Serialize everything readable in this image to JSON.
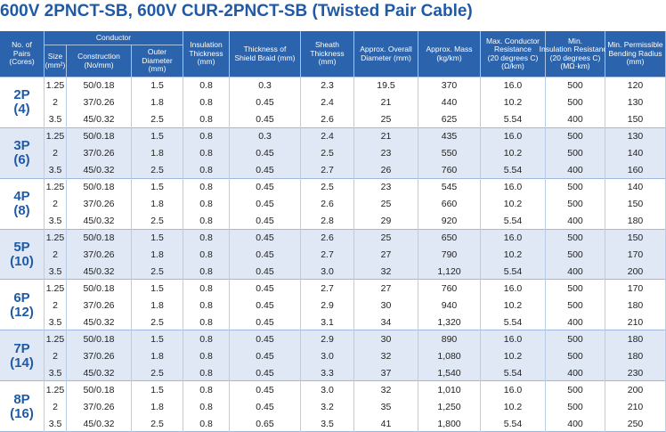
{
  "header": {
    "title": "600V 2PNCT-SB, 600V CUR-2PNCT-SB (Twisted Pair Cable)"
  },
  "table": {
    "group_header": [
      "No. of",
      "Pairs",
      "(Cores)"
    ],
    "conductor_header": "Conductor",
    "columns": [
      [
        "Size",
        "(mm²)"
      ],
      [
        "Construction",
        "(No/mm)"
      ],
      [
        "Outer",
        "Diameter",
        "(mm)"
      ],
      [
        "Insulation",
        "Thickness",
        "(mm)"
      ],
      [
        "Thickness of",
        "Shield Braid (mm)"
      ],
      [
        "Sheath",
        "Thickness",
        "(mm)"
      ],
      [
        "Approx. Overall",
        "Diameter (mm)"
      ],
      [
        "Approx. Mass",
        "(kg/km)"
      ],
      [
        "Max. Conductor",
        "Resistance",
        "(20 degrees C)",
        "(Ω/km)"
      ],
      [
        "Min.",
        "Insulation Resistance",
        "(20 degrees C)",
        "(MΩ·km)"
      ],
      [
        "Min. Permissible",
        "Bending Radius",
        "(mm)"
      ]
    ],
    "groups": [
      {
        "pairs": "2P",
        "cores": "(4)",
        "rows": [
          [
            "1.25",
            "50/0.18",
            "1.5",
            "0.8",
            "0.3",
            "2.3",
            "19.5",
            "370",
            "16.0",
            "500",
            "120"
          ],
          [
            "2",
            "37/0.26",
            "1.8",
            "0.8",
            "0.45",
            "2.4",
            "21",
            "440",
            "10.2",
            "500",
            "130"
          ],
          [
            "3.5",
            "45/0.32",
            "2.5",
            "0.8",
            "0.45",
            "2.6",
            "25",
            "625",
            "5.54",
            "400",
            "150"
          ]
        ]
      },
      {
        "pairs": "3P",
        "cores": "(6)",
        "rows": [
          [
            "1.25",
            "50/0.18",
            "1.5",
            "0.8",
            "0.3",
            "2.4",
            "21",
            "435",
            "16.0",
            "500",
            "130"
          ],
          [
            "2",
            "37/0.26",
            "1.8",
            "0.8",
            "0.45",
            "2.5",
            "23",
            "550",
            "10.2",
            "500",
            "140"
          ],
          [
            "3.5",
            "45/0.32",
            "2.5",
            "0.8",
            "0.45",
            "2.7",
            "26",
            "760",
            "5.54",
            "400",
            "160"
          ]
        ]
      },
      {
        "pairs": "4P",
        "cores": "(8)",
        "rows": [
          [
            "1.25",
            "50/0.18",
            "1.5",
            "0.8",
            "0.45",
            "2.5",
            "23",
            "545",
            "16.0",
            "500",
            "140"
          ],
          [
            "2",
            "37/0.26",
            "1.8",
            "0.8",
            "0.45",
            "2.6",
            "25",
            "660",
            "10.2",
            "500",
            "150"
          ],
          [
            "3.5",
            "45/0.32",
            "2.5",
            "0.8",
            "0.45",
            "2.8",
            "29",
            "920",
            "5.54",
            "400",
            "180"
          ]
        ]
      },
      {
        "pairs": "5P",
        "cores": "(10)",
        "rows": [
          [
            "1.25",
            "50/0.18",
            "1.5",
            "0.8",
            "0.45",
            "2.6",
            "25",
            "650",
            "16.0",
            "500",
            "150"
          ],
          [
            "2",
            "37/0.26",
            "1.8",
            "0.8",
            "0.45",
            "2.7",
            "27",
            "790",
            "10.2",
            "500",
            "170"
          ],
          [
            "3.5",
            "45/0.32",
            "2.5",
            "0.8",
            "0.45",
            "3.0",
            "32",
            "1,120",
            "5.54",
            "400",
            "200"
          ]
        ]
      },
      {
        "pairs": "6P",
        "cores": "(12)",
        "rows": [
          [
            "1.25",
            "50/0.18",
            "1.5",
            "0.8",
            "0.45",
            "2.7",
            "27",
            "760",
            "16.0",
            "500",
            "170"
          ],
          [
            "2",
            "37/0.26",
            "1.8",
            "0.8",
            "0.45",
            "2.9",
            "30",
            "940",
            "10.2",
            "500",
            "180"
          ],
          [
            "3.5",
            "45/0.32",
            "2.5",
            "0.8",
            "0.45",
            "3.1",
            "34",
            "1,320",
            "5.54",
            "400",
            "210"
          ]
        ]
      },
      {
        "pairs": "7P",
        "cores": "(14)",
        "rows": [
          [
            "1.25",
            "50/0.18",
            "1.5",
            "0.8",
            "0.45",
            "2.9",
            "30",
            "890",
            "16.0",
            "500",
            "180"
          ],
          [
            "2",
            "37/0.26",
            "1.8",
            "0.8",
            "0.45",
            "3.0",
            "32",
            "1,080",
            "10.2",
            "500",
            "180"
          ],
          [
            "3.5",
            "45/0.32",
            "2.5",
            "0.8",
            "0.45",
            "3.3",
            "37",
            "1,540",
            "5.54",
            "400",
            "230"
          ]
        ]
      },
      {
        "pairs": "8P",
        "cores": "(16)",
        "rows": [
          [
            "1.25",
            "50/0.18",
            "1.5",
            "0.8",
            "0.45",
            "3.0",
            "32",
            "1,010",
            "16.0",
            "500",
            "200"
          ],
          [
            "2",
            "37/0.26",
            "1.8",
            "0.8",
            "0.45",
            "3.2",
            "35",
            "1,250",
            "10.2",
            "500",
            "210"
          ],
          [
            "3.5",
            "45/0.32",
            "2.5",
            "0.8",
            "0.65",
            "3.5",
            "41",
            "1,800",
            "5.54",
            "400",
            "250"
          ]
        ]
      }
    ]
  }
}
